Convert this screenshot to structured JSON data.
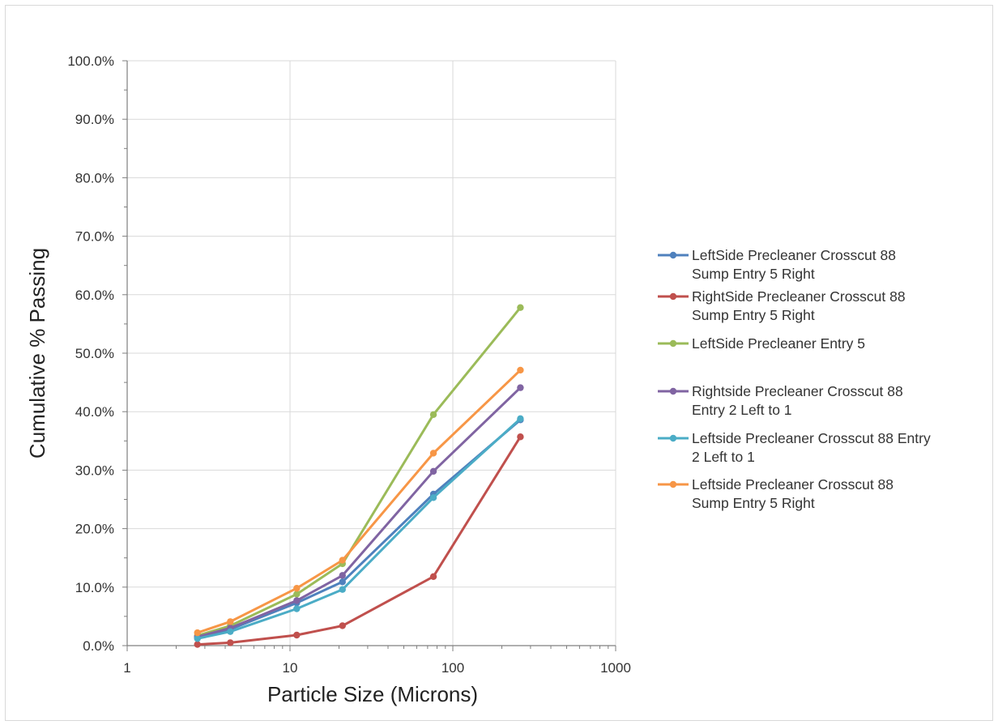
{
  "chart_data": {
    "type": "line",
    "xscale": "log",
    "xlabel": "Particle Size (Microns)",
    "ylabel": "Cumulative % Passing",
    "xlim": [
      1,
      1000
    ],
    "ylim": [
      0,
      100
    ],
    "x_ticks": [
      "1",
      "10",
      "100",
      "1000"
    ],
    "y_ticks": [
      "0.0%",
      "10.0%",
      "20.0%",
      "30.0%",
      "40.0%",
      "50.0%",
      "60.0%",
      "70.0%",
      "80.0%",
      "90.0%",
      "100.0%"
    ],
    "grid": true,
    "legend_position": "right",
    "x": [
      2.7,
      4.3,
      11,
      21,
      76,
      260
    ],
    "series": [
      {
        "name": "LeftSide Precleaner Crosscut 88 Sump Entry 5 Right",
        "legend_lines": [
          "LeftSide Precleaner Crosscut 88",
          "Sump Entry 5 Right"
        ],
        "color": "#4f81bd",
        "values": [
          1.4,
          2.8,
          7.3,
          10.9,
          25.9,
          38.6
        ]
      },
      {
        "name": "RightSide Precleaner Crosscut 88 Sump Entry 5 Right",
        "legend_lines": [
          "RightSide Precleaner Crosscut 88",
          "Sump Entry 5 Right"
        ],
        "color": "#c0504d",
        "values": [
          0.2,
          0.5,
          1.8,
          3.4,
          11.8,
          35.7
        ]
      },
      {
        "name": "LeftSide Precleaner Entry 5",
        "legend_lines": [
          "LeftSide Precleaner Entry 5"
        ],
        "color": "#9bbb59",
        "values": [
          1.7,
          3.4,
          8.8,
          14.0,
          39.5,
          57.8
        ]
      },
      {
        "name": "Rightside Precleaner Crosscut 88 Entry 2 Left to 1",
        "legend_lines": [
          "Rightside Precleaner Crosscut 88",
          "Entry 2 Left to 1"
        ],
        "color": "#8064a2",
        "values": [
          1.5,
          3.0,
          7.7,
          12.0,
          29.8,
          44.1
        ]
      },
      {
        "name": "Leftside Precleaner Crosscut 88 Entry 2 Left to 1",
        "legend_lines": [
          "Leftside Precleaner Crosscut 88 Entry",
          "2 Left to 1"
        ],
        "color": "#4bacc6",
        "values": [
          1.2,
          2.4,
          6.3,
          9.6,
          25.3,
          38.8
        ]
      },
      {
        "name": "Leftside Precleaner Crosscut 88 Sump Entry 5 Right",
        "legend_lines": [
          "Leftside Precleaner Crosscut 88",
          "Sump Entry 5 Right"
        ],
        "color": "#f79646",
        "values": [
          2.2,
          4.1,
          9.8,
          14.6,
          32.9,
          47.1
        ]
      }
    ]
  }
}
